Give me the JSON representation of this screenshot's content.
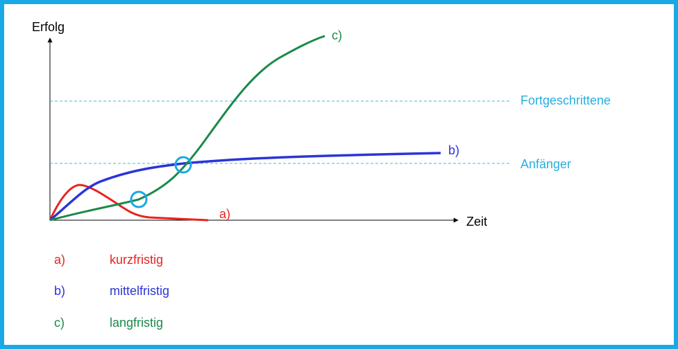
{
  "axes": {
    "y_label": "Erfolg",
    "x_label": "Zeit"
  },
  "levels": [
    {
      "label": "Fortgeschrittene"
    },
    {
      "label": "Anfänger"
    }
  ],
  "curves": [
    {
      "label": "a)"
    },
    {
      "label": "b)"
    },
    {
      "label": "c)"
    }
  ],
  "legend": [
    {
      "key": "a)",
      "label": "kurzfristig"
    },
    {
      "key": "b)",
      "label": "mittelfristig"
    },
    {
      "key": "c)",
      "label": "langfristig"
    }
  ]
}
